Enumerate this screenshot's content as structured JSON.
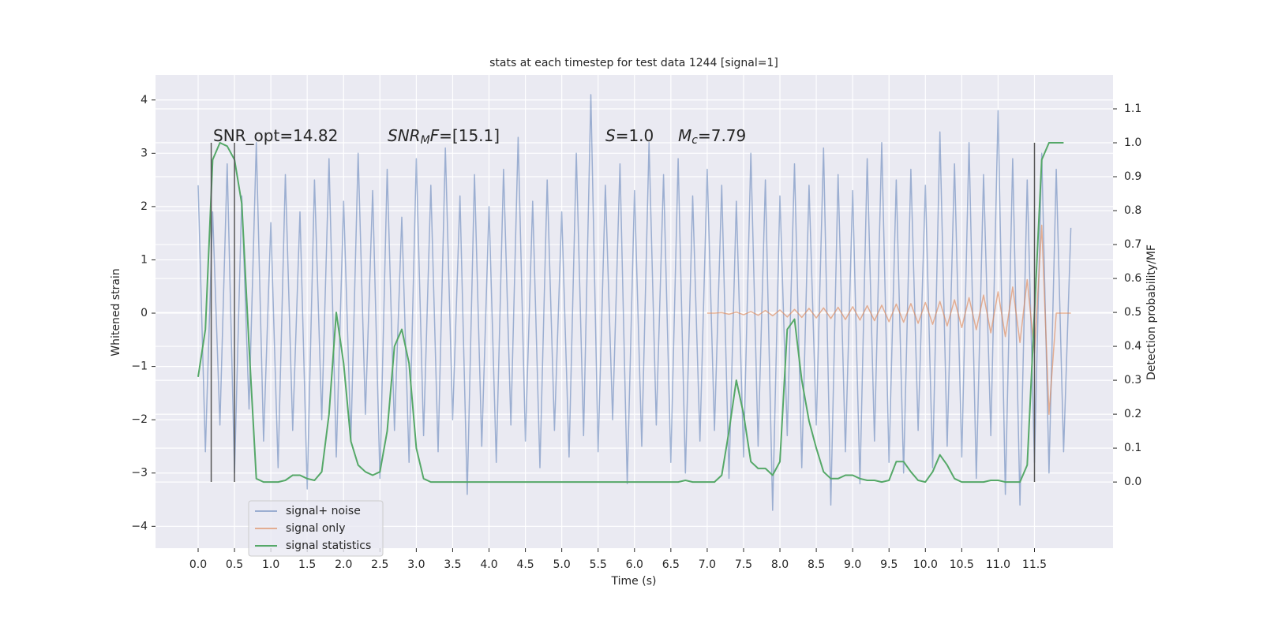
{
  "chart_data": {
    "type": "line",
    "title": "stats at each timestep for test data 1244 [signal=1]",
    "xlabel": "Time (s)",
    "ylabel": "Whitened strain",
    "y2label": "Detection probability/MF",
    "grid": true,
    "legend": "lower left",
    "background": "#eaeaf2",
    "xlim": [
      -0.586,
      12.58
    ],
    "xticks": [
      {
        "value": 0,
        "label": "0.0"
      },
      0.5,
      {
        "value": 1,
        "label": "1.0"
      },
      1.5,
      {
        "value": 2,
        "label": "2.0"
      },
      2.5,
      {
        "value": 3,
        "label": "3.0"
      },
      3.5,
      {
        "value": 4,
        "label": "4.0"
      },
      4.5,
      {
        "value": 5,
        "label": "5.0"
      },
      5.5,
      {
        "value": 6,
        "label": "6.0"
      },
      6.5,
      {
        "value": 7,
        "label": "7.0"
      },
      7.5,
      {
        "value": 8,
        "label": "8.0"
      },
      8.5,
      {
        "value": 9,
        "label": "9.0"
      },
      9.5,
      {
        "value": 10,
        "label": "10.0"
      },
      10.5,
      {
        "value": 11,
        "label": "11.0"
      },
      11.5
    ],
    "ylim": [
      -4.41,
      4.47
    ],
    "yticks": [
      {
        "value": -4,
        "label": "−4"
      },
      {
        "value": -3,
        "label": "−3"
      },
      {
        "value": -2,
        "label": "−2"
      },
      {
        "value": -1,
        "label": "−1"
      },
      0,
      1,
      2,
      3,
      4
    ],
    "y2lim": [
      -0.195,
      1.2
    ],
    "y2ticks": [
      {
        "value": 0,
        "label": "0.0"
      },
      0.1,
      0.2,
      0.3,
      0.4,
      0.5,
      0.6,
      0.7,
      0.8,
      0.9,
      {
        "value": 1,
        "label": "1.0"
      },
      1.1
    ],
    "annotations": [
      {
        "parts": [
          {
            "text": "SNR_opt=14.82",
            "style": "normal"
          }
        ]
      },
      {
        "parts": [
          {
            "text": "SNR",
            "style": "italic"
          },
          {
            "text": "M",
            "style": "sub"
          },
          {
            "text": "F",
            "style": "italic"
          },
          {
            "text": "=[15.1]",
            "style": "normal"
          }
        ]
      },
      {
        "parts": [
          {
            "text": "S",
            "style": "italic"
          },
          {
            "text": "=1.0",
            "style": "normal"
          }
        ]
      },
      {
        "parts": [
          {
            "text": "M",
            "style": "italic"
          },
          {
            "text": "c",
            "style": "sub"
          },
          {
            "text": "=7.79",
            "style": "normal"
          }
        ]
      }
    ],
    "vlines": {
      "x": [
        0.18,
        0.5,
        11.5
      ],
      "color": "#555555"
    },
    "series": [
      {
        "name": "signal+ noise",
        "color": "#4c72b0",
        "opacity": 0.5,
        "axis": "y",
        "x": [
          0.0,
          0.1,
          0.2,
          0.3,
          0.4,
          0.5,
          0.6,
          0.7,
          0.8,
          0.9,
          1.0,
          1.1,
          1.2,
          1.3,
          1.4,
          1.5,
          1.6,
          1.7,
          1.8,
          1.9,
          2.0,
          2.1,
          2.2,
          2.3,
          2.4,
          2.5,
          2.6,
          2.7,
          2.8,
          2.9,
          3.0,
          3.1,
          3.2,
          3.3,
          3.4,
          3.5,
          3.6,
          3.7,
          3.8,
          3.9,
          4.0,
          4.1,
          4.2,
          4.3,
          4.4,
          4.5,
          4.6,
          4.7,
          4.8,
          4.9,
          5.0,
          5.1,
          5.2,
          5.3,
          5.4,
          5.5,
          5.6,
          5.7,
          5.8,
          5.9,
          6.0,
          6.1,
          6.2,
          6.3,
          6.4,
          6.5,
          6.6,
          6.7,
          6.8,
          6.9,
          7.0,
          7.1,
          7.2,
          7.3,
          7.4,
          7.5,
          7.6,
          7.7,
          7.8,
          7.9,
          8.0,
          8.1,
          8.2,
          8.3,
          8.4,
          8.5,
          8.6,
          8.7,
          8.8,
          8.9,
          9.0,
          9.1,
          9.2,
          9.3,
          9.4,
          9.5,
          9.6,
          9.7,
          9.8,
          9.9,
          10.0,
          10.1,
          10.2,
          10.3,
          10.4,
          10.5,
          10.6,
          10.7,
          10.8,
          10.9,
          11.0,
          11.1,
          11.2,
          11.3,
          11.4,
          11.5,
          11.6,
          11.7,
          11.8,
          11.9,
          12.0
        ],
        "values": [
          2.4,
          -2.6,
          1.9,
          -2.1,
          2.8,
          -3.0,
          2.2,
          -1.8,
          3.2,
          -2.4,
          1.7,
          -2.9,
          2.6,
          -2.2,
          1.9,
          -3.3,
          2.5,
          -2.0,
          2.9,
          -2.7,
          2.1,
          -2.4,
          3.0,
          -1.9,
          2.3,
          -3.1,
          2.7,
          -2.2,
          1.8,
          -2.8,
          2.9,
          -2.3,
          2.4,
          -2.6,
          3.1,
          -2.0,
          2.2,
          -3.4,
          2.6,
          -2.5,
          2.0,
          -2.8,
          2.7,
          -2.1,
          3.3,
          -2.4,
          2.1,
          -2.9,
          2.5,
          -2.2,
          1.9,
          -2.7,
          3.0,
          -2.3,
          4.1,
          -2.6,
          2.4,
          -2.0,
          2.8,
          -3.2,
          2.3,
          -2.5,
          3.2,
          -2.1,
          2.6,
          -2.8,
          2.9,
          -3.0,
          2.2,
          -2.4,
          2.7,
          -2.2,
          2.4,
          -3.1,
          2.1,
          -2.7,
          3.0,
          -2.5,
          2.5,
          -3.7,
          2.2,
          -2.3,
          2.8,
          -2.9,
          2.4,
          -2.1,
          3.1,
          -3.6,
          2.6,
          -2.6,
          2.3,
          -3.2,
          2.9,
          -2.4,
          3.2,
          -2.8,
          2.5,
          -3.0,
          2.7,
          -2.2,
          2.4,
          -2.9,
          3.4,
          -2.5,
          2.8,
          -2.7,
          3.2,
          -3.1,
          2.6,
          -2.3,
          3.8,
          -3.4,
          2.9,
          -3.6,
          2.5,
          -2.8,
          3.0,
          -3.0,
          2.7,
          -2.6,
          1.6
        ]
      },
      {
        "name": "signal only",
        "color": "#dd8452",
        "opacity": 0.6,
        "axis": "y",
        "x": [
          7.0,
          7.1,
          7.2,
          7.3,
          7.4,
          7.5,
          7.6,
          7.7,
          7.8,
          7.9,
          8.0,
          8.1,
          8.2,
          8.3,
          8.4,
          8.5,
          8.6,
          8.7,
          8.8,
          8.9,
          9.0,
          9.1,
          9.2,
          9.3,
          9.4,
          9.5,
          9.6,
          9.7,
          9.8,
          9.9,
          10.0,
          10.1,
          10.2,
          10.3,
          10.4,
          10.5,
          10.6,
          10.7,
          10.8,
          10.9,
          11.0,
          11.1,
          11.2,
          11.3,
          11.4,
          11.5,
          11.6,
          11.7,
          11.8,
          11.9,
          12.0
        ],
        "values": [
          0,
          0,
          0.01,
          -0.02,
          0.02,
          -0.03,
          0.03,
          -0.04,
          0.05,
          -0.05,
          0.06,
          -0.07,
          0.07,
          -0.08,
          0.09,
          -0.09,
          0.1,
          -0.1,
          0.11,
          -0.12,
          0.12,
          -0.13,
          0.14,
          -0.14,
          0.15,
          -0.16,
          0.17,
          -0.17,
          0.18,
          -0.19,
          0.2,
          -0.21,
          0.22,
          -0.24,
          0.25,
          -0.27,
          0.29,
          -0.31,
          0.34,
          -0.37,
          0.4,
          -0.44,
          0.49,
          -0.55,
          0.63,
          -0.75,
          1.65,
          -1.9,
          0,
          0,
          0
        ]
      },
      {
        "name": "signal statistics",
        "color": "#55a868",
        "opacity": 1,
        "axis": "y2",
        "x": [
          0.0,
          0.1,
          0.2,
          0.3,
          0.4,
          0.5,
          0.6,
          0.7,
          0.8,
          0.9,
          1.0,
          1.1,
          1.2,
          1.3,
          1.4,
          1.5,
          1.6,
          1.7,
          1.8,
          1.9,
          2.0,
          2.1,
          2.2,
          2.3,
          2.4,
          2.5,
          2.6,
          2.7,
          2.8,
          2.9,
          3.0,
          3.1,
          3.2,
          3.3,
          3.4,
          3.5,
          3.6,
          3.7,
          3.8,
          3.9,
          4.0,
          4.1,
          4.2,
          4.3,
          4.4,
          4.5,
          4.6,
          4.7,
          4.8,
          4.9,
          5.0,
          5.1,
          5.2,
          5.3,
          5.4,
          5.5,
          5.6,
          5.7,
          5.8,
          5.9,
          6.0,
          6.1,
          6.2,
          6.3,
          6.4,
          6.5,
          6.6,
          6.7,
          6.8,
          6.9,
          7.0,
          7.1,
          7.2,
          7.3,
          7.4,
          7.5,
          7.6,
          7.7,
          7.8,
          7.9,
          8.0,
          8.1,
          8.2,
          8.3,
          8.4,
          8.5,
          8.6,
          8.7,
          8.8,
          8.9,
          9.0,
          9.1,
          9.2,
          9.3,
          9.4,
          9.5,
          9.6,
          9.7,
          9.8,
          9.9,
          10.0,
          10.1,
          10.2,
          10.3,
          10.4,
          10.5,
          10.6,
          10.7,
          10.8,
          10.9,
          11.0,
          11.1,
          11.2,
          11.3,
          11.4,
          11.5,
          11.6,
          11.7,
          11.8,
          11.9
        ],
        "values": [
          0.31,
          0.45,
          0.95,
          1.0,
          0.99,
          0.95,
          0.82,
          0.4,
          0.01,
          0.0,
          0.0,
          0.0,
          0.005,
          0.02,
          0.02,
          0.01,
          0.005,
          0.03,
          0.2,
          0.5,
          0.35,
          0.12,
          0.05,
          0.03,
          0.02,
          0.03,
          0.15,
          0.4,
          0.45,
          0.35,
          0.1,
          0.01,
          0,
          0,
          0,
          0,
          0,
          0,
          0,
          0,
          0,
          0,
          0,
          0,
          0,
          0,
          0,
          0,
          0,
          0,
          0,
          0,
          0,
          0,
          0,
          0,
          0,
          0,
          0,
          0,
          0,
          0,
          0,
          0,
          0,
          0,
          0,
          0.005,
          0,
          0,
          0,
          0,
          0.02,
          0.15,
          0.3,
          0.2,
          0.06,
          0.04,
          0.04,
          0.02,
          0.06,
          0.45,
          0.48,
          0.3,
          0.18,
          0.1,
          0.03,
          0.01,
          0.01,
          0.02,
          0.02,
          0.01,
          0.005,
          0.005,
          0,
          0.005,
          0.06,
          0.06,
          0.03,
          0.005,
          0,
          0.03,
          0.08,
          0.05,
          0.01,
          0,
          0,
          0,
          0,
          0.005,
          0.005,
          0,
          0,
          0,
          0.05,
          0.5,
          0.95,
          1.0,
          1.0,
          1.0
        ]
      }
    ]
  }
}
